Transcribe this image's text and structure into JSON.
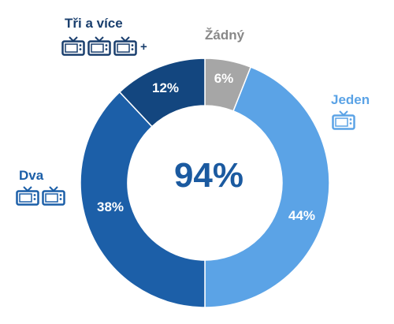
{
  "chart_data": {
    "type": "donut",
    "center_label": "94%",
    "slices": [
      {
        "name": "Žádný",
        "value": 6,
        "label": "6%",
        "color": "#a6a6a6"
      },
      {
        "name": "Jeden",
        "value": 44,
        "label": "44%",
        "color": "#5ba3e6"
      },
      {
        "name": "Dva",
        "value": 38,
        "label": "38%",
        "color": "#1c5fa8"
      },
      {
        "name": "Tři a více",
        "value": 12,
        "label": "12%",
        "color": "#13467f"
      }
    ],
    "icons": {
      "Žádný": {
        "count": 0,
        "plus": ""
      },
      "Jeden": {
        "count": 1,
        "plus": ""
      },
      "Dva": {
        "count": 2,
        "plus": ""
      },
      "Tři a více": {
        "count": 3,
        "plus": "+"
      }
    },
    "category_colors": {
      "Žádný": "#888888",
      "Jeden": "#5ba3e6",
      "Dva": "#1c5fa8",
      "Tři a více": "#1a3f6e"
    }
  }
}
